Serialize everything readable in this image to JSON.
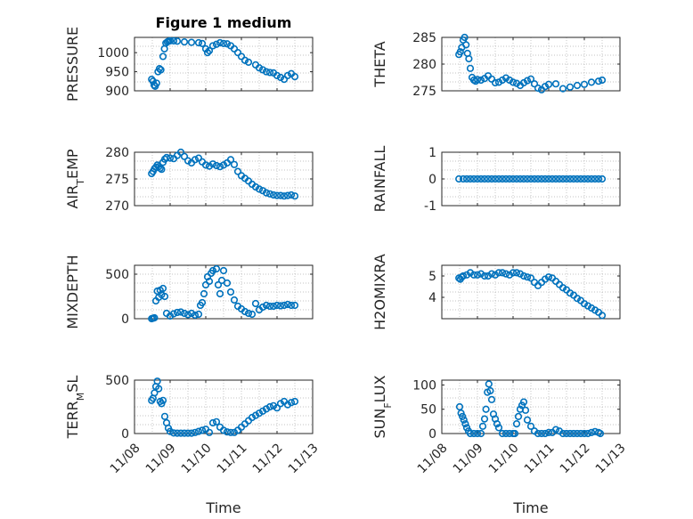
{
  "figure": {
    "title": "Figure 1 medium"
  },
  "chart_data": [
    {
      "type": "scatter",
      "panel": "pressure",
      "xlabel": "",
      "ylabel": "PRESSURE",
      "xlim": [
        0,
        5
      ],
      "ylim": [
        900,
        1040
      ],
      "yticks": [
        900,
        950,
        1000
      ],
      "ytick_labels": [
        "900",
        "950",
        "1000"
      ],
      "grid": true,
      "color": "#0072BD",
      "x": [
        0.48,
        0.52,
        0.55,
        0.58,
        0.62,
        0.66,
        0.7,
        0.74,
        0.8,
        0.84,
        0.88,
        0.92,
        0.96,
        1.0,
        1.1,
        1.2,
        1.4,
        1.6,
        1.8,
        1.9,
        2.0,
        2.05,
        2.1,
        2.2,
        2.3,
        2.4,
        2.5,
        2.6,
        2.7,
        2.8,
        2.9,
        3.0,
        3.1,
        3.2,
        3.4,
        3.5,
        3.6,
        3.7,
        3.8,
        3.9,
        4.0,
        4.1,
        4.2,
        4.3,
        4.4,
        4.5
      ],
      "y": [
        930,
        925,
        915,
        912,
        920,
        950,
        958,
        955,
        990,
        1010,
        1025,
        1028,
        1030,
        1031,
        1031,
        1030,
        1028,
        1027,
        1026,
        1024,
        1010,
        1000,
        1005,
        1018,
        1022,
        1026,
        1024,
        1023,
        1018,
        1010,
        1000,
        990,
        980,
        975,
        968,
        960,
        955,
        950,
        948,
        947,
        940,
        935,
        930,
        940,
        945,
        937
      ]
    },
    {
      "type": "scatter",
      "panel": "theta",
      "xlabel": "",
      "ylabel": "THETA",
      "xlim": [
        0,
        5
      ],
      "ylim": [
        275,
        285
      ],
      "yticks": [
        275,
        280,
        285
      ],
      "ytick_labels": [
        "275",
        "280",
        "285"
      ],
      "grid": true,
      "color": "#0072BD",
      "x": [
        0.48,
        0.52,
        0.56,
        0.6,
        0.64,
        0.68,
        0.72,
        0.76,
        0.8,
        0.85,
        0.9,
        0.95,
        1.0,
        1.1,
        1.2,
        1.3,
        1.4,
        1.5,
        1.6,
        1.7,
        1.8,
        1.9,
        2.0,
        2.1,
        2.2,
        2.3,
        2.4,
        2.5,
        2.6,
        2.7,
        2.8,
        2.9,
        3.0,
        3.2,
        3.4,
        3.6,
        3.8,
        4.0,
        4.2,
        4.4,
        4.5
      ],
      "y": [
        281.8,
        282.3,
        283.1,
        284.5,
        285.0,
        283.6,
        282.0,
        281.0,
        279.2,
        277.5,
        277.0,
        276.8,
        277.1,
        277.0,
        277.3,
        277.8,
        277.2,
        276.5,
        276.6,
        277.0,
        277.4,
        277.0,
        276.6,
        276.4,
        276.0,
        276.5,
        276.9,
        277.2,
        276.3,
        275.5,
        275.2,
        275.8,
        276.2,
        276.3,
        275.4,
        275.7,
        276.0,
        276.2,
        276.6,
        276.8,
        277.0
      ]
    },
    {
      "type": "scatter",
      "panel": "air_temp",
      "xlabel": "",
      "ylabel": "AIR_TEMP",
      "xlim": [
        0,
        5
      ],
      "ylim": [
        270,
        280
      ],
      "yticks": [
        270,
        275,
        280
      ],
      "ytick_labels": [
        "270",
        "275",
        "280"
      ],
      "grid": true,
      "color": "#0072BD",
      "x": [
        0.48,
        0.52,
        0.56,
        0.6,
        0.64,
        0.68,
        0.72,
        0.76,
        0.8,
        0.85,
        0.9,
        1.0,
        1.1,
        1.2,
        1.3,
        1.4,
        1.5,
        1.6,
        1.7,
        1.8,
        1.9,
        2.0,
        2.1,
        2.2,
        2.3,
        2.4,
        2.5,
        2.6,
        2.7,
        2.8,
        2.9,
        3.0,
        3.1,
        3.2,
        3.3,
        3.4,
        3.5,
        3.6,
        3.7,
        3.8,
        3.9,
        4.0,
        4.1,
        4.2,
        4.3,
        4.4,
        4.5
      ],
      "y": [
        276.0,
        276.4,
        276.9,
        277.2,
        277.6,
        277.3,
        277.0,
        276.8,
        278.1,
        278.7,
        279.0,
        278.9,
        278.8,
        279.4,
        280.0,
        279.2,
        278.4,
        278.0,
        278.6,
        278.9,
        278.2,
        277.6,
        277.4,
        277.8,
        277.5,
        277.3,
        277.6,
        278.0,
        278.6,
        277.7,
        276.4,
        275.6,
        275.1,
        274.6,
        274.0,
        273.5,
        273.1,
        272.8,
        272.4,
        272.2,
        272.0,
        271.9,
        271.9,
        271.8,
        271.9,
        272.0,
        271.8
      ]
    },
    {
      "type": "scatter",
      "panel": "rainfall",
      "xlabel": "",
      "ylabel": "RAINFALL",
      "xlim": [
        0,
        5
      ],
      "ylim": [
        -1,
        1
      ],
      "yticks": [
        -1,
        0,
        1
      ],
      "ytick_labels": [
        "-1",
        "0",
        "1"
      ],
      "grid": true,
      "color": "#0072BD",
      "x": [
        0.48,
        0.6,
        0.7,
        0.8,
        0.9,
        1.0,
        1.1,
        1.2,
        1.3,
        1.4,
        1.5,
        1.6,
        1.7,
        1.8,
        1.9,
        2.0,
        2.1,
        2.2,
        2.3,
        2.4,
        2.5,
        2.6,
        2.7,
        2.8,
        2.9,
        3.0,
        3.1,
        3.2,
        3.3,
        3.4,
        3.5,
        3.6,
        3.7,
        3.8,
        3.9,
        4.0,
        4.1,
        4.2,
        4.3,
        4.4,
        4.5
      ],
      "y": [
        0,
        0,
        0,
        0,
        0,
        0,
        0,
        0,
        0,
        0,
        0,
        0,
        0,
        0,
        0,
        0,
        0,
        0,
        0,
        0,
        0,
        0,
        0,
        0,
        0,
        0,
        0,
        0,
        0,
        0,
        0,
        0,
        0,
        0,
        0,
        0,
        0,
        0,
        0,
        0,
        0
      ]
    },
    {
      "type": "scatter",
      "panel": "mixdepth",
      "xlabel": "",
      "ylabel": "MIXDEPTH",
      "xlim": [
        0,
        5
      ],
      "ylim": [
        0,
        600
      ],
      "yticks": [
        0,
        500
      ],
      "ytick_labels": [
        "0",
        "500"
      ],
      "grid": true,
      "color": "#0072BD",
      "x": [
        0.48,
        0.52,
        0.56,
        0.6,
        0.64,
        0.68,
        0.72,
        0.76,
        0.8,
        0.85,
        0.9,
        1.0,
        1.1,
        1.2,
        1.3,
        1.4,
        1.5,
        1.6,
        1.7,
        1.8,
        1.85,
        1.9,
        1.95,
        2.0,
        2.05,
        2.1,
        2.15,
        2.2,
        2.3,
        2.35,
        2.4,
        2.45,
        2.5,
        2.6,
        2.7,
        2.8,
        2.9,
        3.0,
        3.1,
        3.2,
        3.3,
        3.4,
        3.5,
        3.6,
        3.7,
        3.8,
        3.9,
        4.0,
        4.1,
        4.2,
        4.3,
        4.4,
        4.5
      ],
      "y": [
        0,
        5,
        10,
        200,
        310,
        240,
        320,
        270,
        340,
        250,
        60,
        30,
        55,
        70,
        75,
        60,
        45,
        60,
        40,
        50,
        150,
        180,
        280,
        380,
        470,
        420,
        510,
        540,
        560,
        380,
        280,
        430,
        540,
        400,
        300,
        210,
        140,
        110,
        80,
        60,
        50,
        170,
        100,
        130,
        150,
        140,
        140,
        150,
        145,
        150,
        160,
        150,
        150
      ]
    },
    {
      "type": "scatter",
      "panel": "h2omixra",
      "xlabel": "",
      "ylabel": "H2OMIXRA",
      "xlim": [
        0,
        5
      ],
      "ylim": [
        3,
        5.5
      ],
      "yticks": [
        4,
        5
      ],
      "ytick_labels": [
        "4",
        "5"
      ],
      "grid": true,
      "color": "#0072BD",
      "x": [
        0.48,
        0.52,
        0.56,
        0.6,
        0.7,
        0.8,
        0.9,
        1.0,
        1.1,
        1.2,
        1.3,
        1.4,
        1.5,
        1.6,
        1.7,
        1.8,
        1.9,
        2.0,
        2.1,
        2.2,
        2.3,
        2.4,
        2.5,
        2.6,
        2.7,
        2.8,
        2.9,
        3.0,
        3.1,
        3.2,
        3.3,
        3.4,
        3.5,
        3.6,
        3.7,
        3.8,
        3.9,
        4.0,
        4.1,
        4.2,
        4.3,
        4.4,
        4.5
      ],
      "y": [
        4.9,
        4.85,
        4.95,
        5.0,
        5.05,
        5.15,
        5.05,
        5.05,
        5.1,
        5.0,
        5.0,
        5.1,
        5.05,
        5.15,
        5.15,
        5.1,
        5.05,
        5.15,
        5.15,
        5.1,
        5.0,
        4.95,
        4.9,
        4.7,
        4.55,
        4.7,
        4.85,
        4.95,
        4.9,
        4.75,
        4.6,
        4.45,
        4.35,
        4.2,
        4.1,
        3.95,
        3.85,
        3.7,
        3.6,
        3.5,
        3.4,
        3.3,
        3.15
      ]
    },
    {
      "type": "scatter",
      "panel": "terr_msl",
      "xlabel": "Time",
      "ylabel": "TERR_MSL",
      "xlim": [
        0,
        5
      ],
      "ylim": [
        0,
        500
      ],
      "yticks": [
        0,
        500
      ],
      "ytick_labels": [
        "0",
        "500"
      ],
      "xticks": [
        0,
        1,
        2,
        3,
        4,
        5
      ],
      "xtick_labels": [
        "11/08",
        "11/09",
        "11/10",
        "11/11",
        "11/12",
        "11/13"
      ],
      "grid": true,
      "color": "#0072BD",
      "x": [
        0.48,
        0.52,
        0.56,
        0.6,
        0.64,
        0.68,
        0.72,
        0.76,
        0.8,
        0.85,
        0.9,
        0.95,
        1.0,
        1.1,
        1.2,
        1.3,
        1.4,
        1.5,
        1.6,
        1.7,
        1.8,
        1.9,
        2.0,
        2.1,
        2.2,
        2.3,
        2.4,
        2.5,
        2.6,
        2.7,
        2.8,
        2.9,
        3.0,
        3.1,
        3.2,
        3.3,
        3.4,
        3.5,
        3.6,
        3.7,
        3.8,
        3.9,
        4.0,
        4.1,
        4.2,
        4.3,
        4.4,
        4.5
      ],
      "y": [
        310,
        330,
        380,
        440,
        490,
        420,
        300,
        280,
        310,
        160,
        100,
        50,
        20,
        5,
        3,
        3,
        3,
        3,
        3,
        10,
        20,
        30,
        40,
        10,
        100,
        110,
        60,
        30,
        15,
        10,
        10,
        30,
        60,
        90,
        120,
        150,
        170,
        190,
        210,
        230,
        250,
        260,
        240,
        280,
        300,
        270,
        290,
        300
      ]
    },
    {
      "type": "scatter",
      "panel": "sun_flux",
      "xlabel": "Time",
      "ylabel": "SUN_FLUX",
      "xlim": [
        0,
        5
      ],
      "ylim": [
        0,
        110
      ],
      "yticks": [
        0,
        50,
        100
      ],
      "ytick_labels": [
        "0",
        "50",
        "100"
      ],
      "xticks": [
        0,
        1,
        2,
        3,
        4,
        5
      ],
      "xtick_labels": [
        "11/08",
        "11/09",
        "11/10",
        "11/11",
        "11/12",
        "11/13"
      ],
      "grid": true,
      "color": "#0072BD",
      "x": [
        0.5,
        0.54,
        0.58,
        0.62,
        0.66,
        0.7,
        0.75,
        0.8,
        0.9,
        1.0,
        1.1,
        1.15,
        1.2,
        1.24,
        1.28,
        1.32,
        1.36,
        1.4,
        1.45,
        1.5,
        1.55,
        1.6,
        1.7,
        1.8,
        1.9,
        2.0,
        2.05,
        2.1,
        2.15,
        2.2,
        2.25,
        2.3,
        2.35,
        2.4,
        2.5,
        2.6,
        2.7,
        2.8,
        2.9,
        3.0,
        3.1,
        3.2,
        3.3,
        3.4,
        3.5,
        3.6,
        3.7,
        3.8,
        3.9,
        4.0,
        4.1,
        4.2,
        4.3,
        4.4,
        4.45
      ],
      "y": [
        55,
        42,
        35,
        28,
        20,
        12,
        5,
        0,
        0,
        0,
        0,
        15,
        30,
        50,
        85,
        102,
        88,
        70,
        40,
        30,
        20,
        12,
        0,
        0,
        0,
        0,
        0,
        20,
        35,
        50,
        58,
        65,
        48,
        28,
        15,
        5,
        0,
        0,
        0,
        2,
        2,
        8,
        5,
        0,
        0,
        0,
        0,
        0,
        0,
        0,
        0,
        2,
        4,
        2,
        0
      ]
    }
  ]
}
